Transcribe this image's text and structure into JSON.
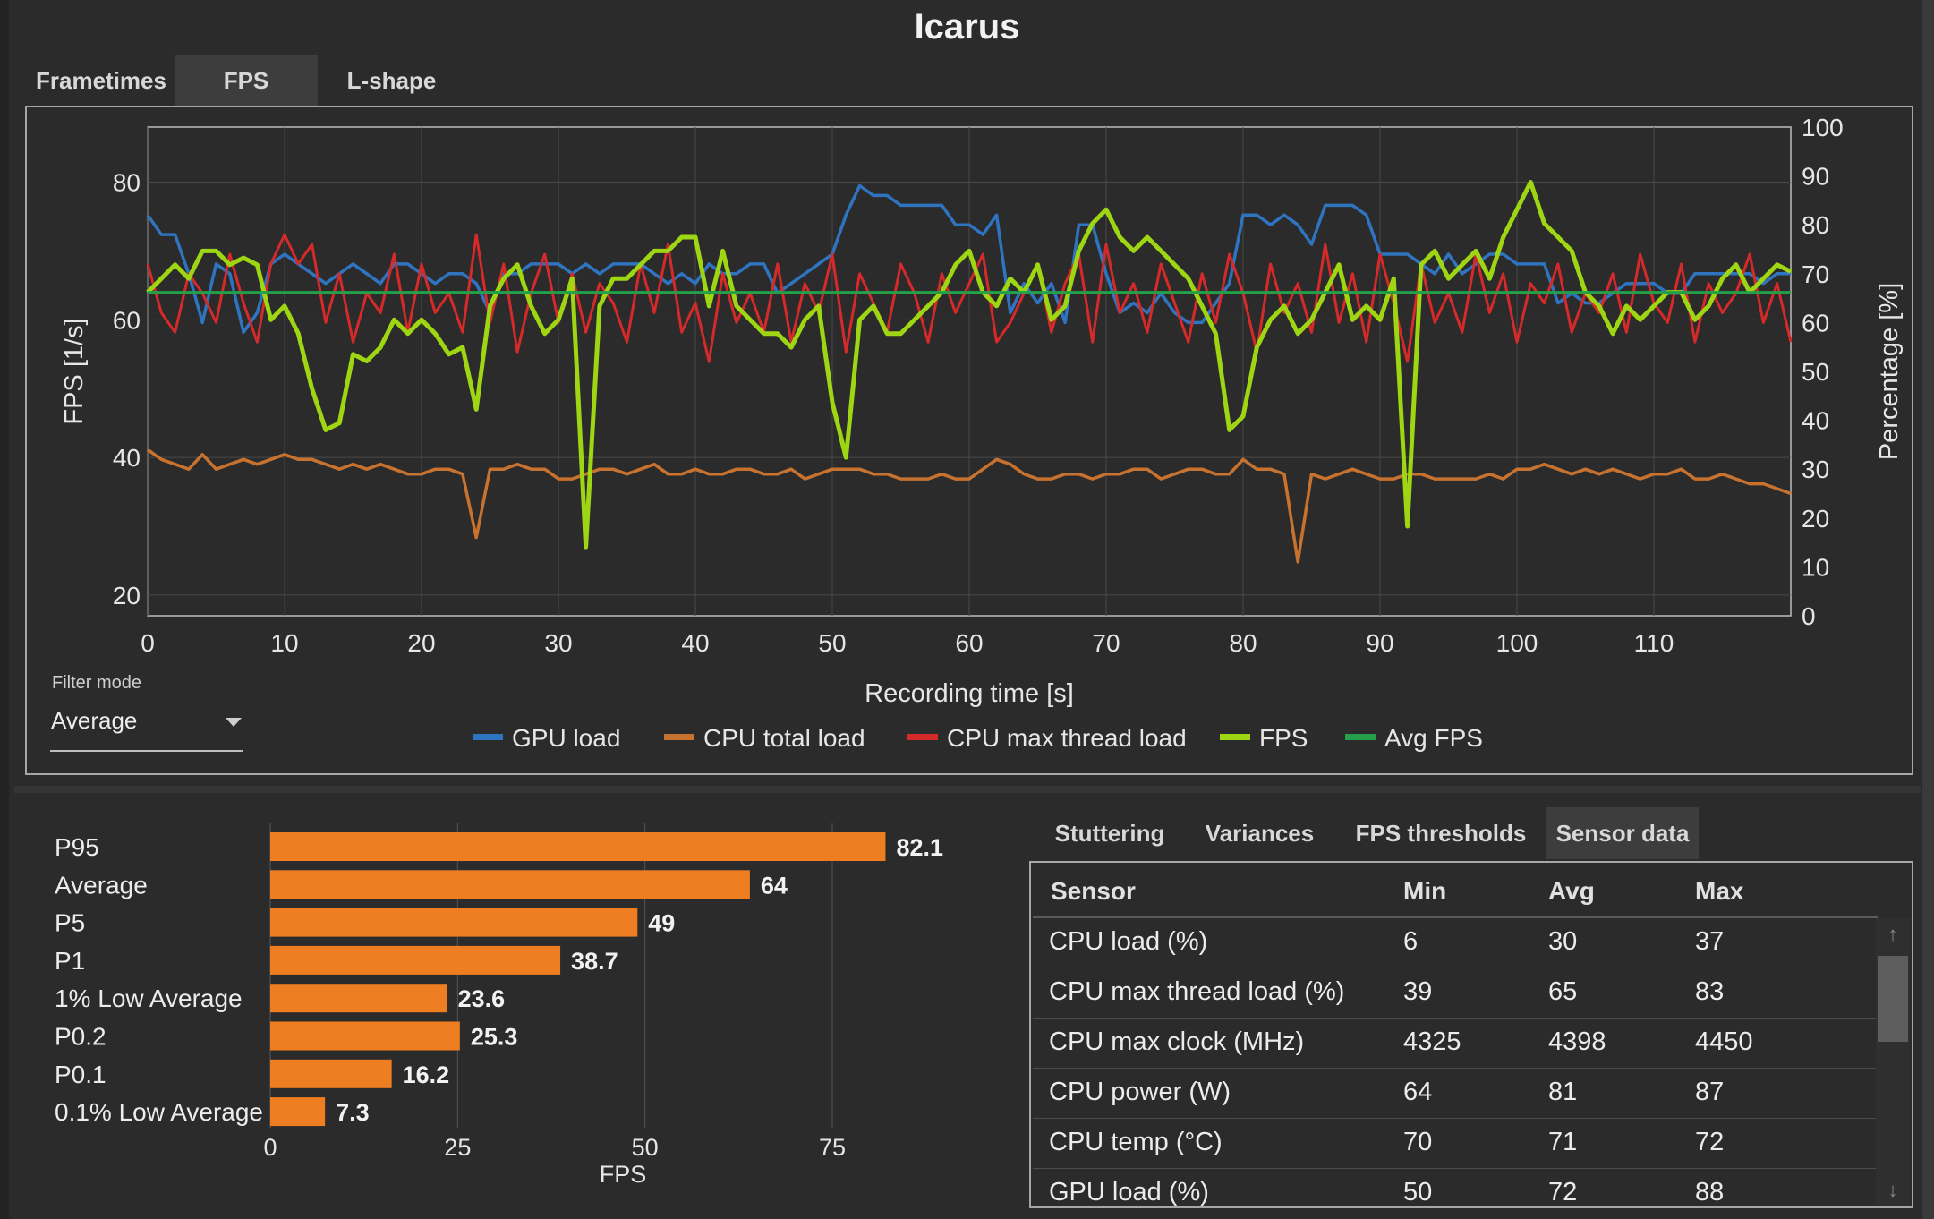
{
  "title": "Icarus",
  "tabs": [
    "Frametimes",
    "FPS",
    "L-shape"
  ],
  "active_tab": "FPS",
  "filter": {
    "label": "Filter mode",
    "value": "Average"
  },
  "colors": {
    "gpu_load": "#2f74c0",
    "cpu_total": "#c8722f",
    "cpu_max_thread": "#d42a2a",
    "fps": "#9ed614",
    "avg_fps": "#23a049",
    "bar": "#ef7d22"
  },
  "chart_data": [
    {
      "type": "line",
      "title": "",
      "xlabel": "Recording time [s]",
      "ylabel": "FPS [1/s]",
      "y2label": "Percentage [%]",
      "xlim": [
        0,
        120
      ],
      "ylim": [
        17,
        88
      ],
      "y2lim": [
        0,
        100
      ],
      "xticks": [
        0,
        10,
        20,
        30,
        40,
        50,
        60,
        70,
        80,
        90,
        100,
        110
      ],
      "yticks": [
        20,
        40,
        60,
        80
      ],
      "y2ticks": [
        0,
        10,
        20,
        30,
        40,
        50,
        60,
        70,
        80,
        90,
        100
      ],
      "grid": true,
      "legend_position": "bottom",
      "series": [
        {
          "name": "GPU load",
          "axis": "right",
          "x": [
            0,
            1,
            2,
            3,
            4,
            5,
            6,
            7,
            8,
            9,
            10,
            11,
            12,
            13,
            14,
            15,
            16,
            17,
            18,
            19,
            20,
            21,
            22,
            23,
            24,
            25,
            26,
            27,
            28,
            29,
            30,
            31,
            32,
            33,
            34,
            35,
            36,
            37,
            38,
            39,
            40,
            41,
            42,
            43,
            44,
            45,
            46,
            47,
            48,
            49,
            50,
            51,
            52,
            53,
            54,
            55,
            56,
            57,
            58,
            59,
            60,
            61,
            62,
            63,
            64,
            65,
            66,
            67,
            68,
            69,
            70,
            71,
            72,
            73,
            74,
            75,
            76,
            77,
            78,
            79,
            80,
            81,
            82,
            83,
            84,
            85,
            86,
            87,
            88,
            89,
            90,
            91,
            92,
            93,
            94,
            95,
            96,
            97,
            98,
            99,
            100,
            101,
            102,
            103,
            104,
            105,
            106,
            107,
            108,
            109,
            110,
            111,
            112,
            113,
            114,
            115,
            116,
            117,
            118,
            119,
            120
          ],
          "y": [
            82,
            78,
            78,
            70,
            60,
            72,
            70,
            58,
            62,
            72,
            74,
            72,
            70,
            68,
            70,
            72,
            70,
            68,
            72,
            72,
            70,
            68,
            70,
            70,
            68,
            62,
            70,
            70,
            72,
            72,
            72,
            70,
            72,
            70,
            72,
            72,
            72,
            70,
            68,
            70,
            68,
            72,
            70,
            70,
            72,
            72,
            66,
            68,
            70,
            72,
            74,
            82,
            88,
            86,
            86,
            84,
            84,
            84,
            84,
            80,
            80,
            78,
            82,
            62,
            68,
            64,
            68,
            60,
            80,
            80,
            70,
            62,
            64,
            62,
            66,
            62,
            60,
            60,
            64,
            68,
            82,
            82,
            80,
            82,
            80,
            76,
            84,
            84,
            84,
            82,
            74,
            74,
            74,
            72,
            70,
            74,
            70,
            72,
            74,
            74,
            72,
            72,
            72,
            64,
            66,
            64,
            64,
            66,
            68,
            68,
            68,
            66,
            66,
            70,
            70,
            70,
            70,
            70,
            68,
            70,
            70
          ]
        },
        {
          "name": "CPU total load",
          "axis": "right",
          "x": [
            0,
            1,
            2,
            3,
            4,
            5,
            6,
            7,
            8,
            9,
            10,
            11,
            12,
            13,
            14,
            15,
            16,
            17,
            18,
            19,
            20,
            21,
            22,
            23,
            24,
            25,
            26,
            27,
            28,
            29,
            30,
            31,
            32,
            33,
            34,
            35,
            36,
            37,
            38,
            39,
            40,
            41,
            42,
            43,
            44,
            45,
            46,
            47,
            48,
            49,
            50,
            51,
            52,
            53,
            54,
            55,
            56,
            57,
            58,
            59,
            60,
            61,
            62,
            63,
            64,
            65,
            66,
            67,
            68,
            69,
            70,
            71,
            72,
            73,
            74,
            75,
            76,
            77,
            78,
            79,
            80,
            81,
            82,
            83,
            84,
            85,
            86,
            87,
            88,
            89,
            90,
            91,
            92,
            93,
            94,
            95,
            96,
            97,
            98,
            99,
            100,
            101,
            102,
            103,
            104,
            105,
            106,
            107,
            108,
            109,
            110,
            111,
            112,
            113,
            114,
            115,
            116,
            117,
            118,
            119,
            120
          ],
          "y": [
            34,
            32,
            31,
            30,
            33,
            30,
            31,
            32,
            31,
            32,
            33,
            32,
            32,
            31,
            30,
            31,
            30,
            31,
            30,
            29,
            29,
            30,
            30,
            29,
            16,
            30,
            30,
            31,
            30,
            30,
            28,
            28,
            29,
            30,
            30,
            29,
            30,
            31,
            29,
            29,
            30,
            29,
            29,
            30,
            30,
            29,
            29,
            30,
            28,
            29,
            30,
            30,
            30,
            29,
            29,
            28,
            28,
            28,
            29,
            28,
            28,
            30,
            32,
            31,
            29,
            28,
            28,
            29,
            29,
            28,
            29,
            29,
            30,
            30,
            28,
            29,
            30,
            30,
            29,
            29,
            32,
            30,
            30,
            29,
            11,
            29,
            28,
            29,
            30,
            29,
            28,
            28,
            29,
            29,
            28,
            28,
            28,
            28,
            29,
            28,
            30,
            30,
            31,
            30,
            29,
            30,
            29,
            30,
            29,
            28,
            29,
            29,
            30,
            28,
            28,
            29,
            28,
            27,
            27,
            26,
            25
          ]
        },
        {
          "name": "CPU max thread load",
          "axis": "right",
          "x": [
            0,
            1,
            2,
            3,
            4,
            5,
            6,
            7,
            8,
            9,
            10,
            11,
            12,
            13,
            14,
            15,
            16,
            17,
            18,
            19,
            20,
            21,
            22,
            23,
            24,
            25,
            26,
            27,
            28,
            29,
            30,
            31,
            32,
            33,
            34,
            35,
            36,
            37,
            38,
            39,
            40,
            41,
            42,
            43,
            44,
            45,
            46,
            47,
            48,
            49,
            50,
            51,
            52,
            53,
            54,
            55,
            56,
            57,
            58,
            59,
            60,
            61,
            62,
            63,
            64,
            65,
            66,
            67,
            68,
            69,
            70,
            71,
            72,
            73,
            74,
            75,
            76,
            77,
            78,
            79,
            80,
            81,
            82,
            83,
            84,
            85,
            86,
            87,
            88,
            89,
            90,
            91,
            92,
            93,
            94,
            95,
            96,
            97,
            98,
            99,
            100,
            101,
            102,
            103,
            104,
            105,
            106,
            107,
            108,
            109,
            110,
            111,
            112,
            113,
            114,
            115,
            116,
            117,
            118,
            119,
            120
          ],
          "y": [
            72,
            62,
            58,
            70,
            66,
            60,
            74,
            64,
            56,
            72,
            78,
            72,
            76,
            60,
            70,
            56,
            66,
            62,
            74,
            58,
            72,
            62,
            66,
            58,
            78,
            60,
            72,
            54,
            66,
            74,
            60,
            70,
            58,
            68,
            64,
            56,
            72,
            62,
            76,
            58,
            64,
            52,
            70,
            60,
            66,
            58,
            72,
            56,
            68,
            62,
            74,
            54,
            70,
            64,
            58,
            72,
            66,
            56,
            70,
            62,
            68,
            74,
            56,
            60,
            66,
            72,
            58,
            68,
            74,
            56,
            76,
            62,
            68,
            58,
            72,
            64,
            56,
            70,
            60,
            74,
            66,
            54,
            72,
            62,
            68,
            58,
            76,
            60,
            70,
            56,
            74,
            64,
            52,
            72,
            60,
            66,
            58,
            74,
            62,
            70,
            56,
            68,
            64,
            72,
            58,
            66,
            62,
            70,
            58,
            74,
            64,
            60,
            72,
            56,
            68,
            62,
            66,
            74,
            60,
            68,
            56
          ]
        },
        {
          "name": "FPS",
          "axis": "left",
          "x": [
            0,
            1,
            2,
            3,
            4,
            5,
            6,
            7,
            8,
            9,
            10,
            11,
            12,
            13,
            14,
            15,
            16,
            17,
            18,
            19,
            20,
            21,
            22,
            23,
            24,
            25,
            26,
            27,
            28,
            29,
            30,
            31,
            32,
            33,
            34,
            35,
            36,
            37,
            38,
            39,
            40,
            41,
            42,
            43,
            44,
            45,
            46,
            47,
            48,
            49,
            50,
            51,
            52,
            53,
            54,
            55,
            56,
            57,
            58,
            59,
            60,
            61,
            62,
            63,
            64,
            65,
            66,
            67,
            68,
            69,
            70,
            71,
            72,
            73,
            74,
            75,
            76,
            77,
            78,
            79,
            80,
            81,
            82,
            83,
            84,
            85,
            86,
            87,
            88,
            89,
            90,
            91,
            92,
            93,
            94,
            95,
            96,
            97,
            98,
            99,
            100,
            101,
            102,
            103,
            104,
            105,
            106,
            107,
            108,
            109,
            110,
            111,
            112,
            113,
            114,
            115,
            116,
            117,
            118,
            119,
            120
          ],
          "y": [
            64,
            66,
            68,
            66,
            70,
            70,
            68,
            69,
            68,
            60,
            62,
            58,
            50,
            44,
            45,
            55,
            54,
            56,
            60,
            58,
            60,
            58,
            55,
            56,
            47,
            62,
            66,
            68,
            62,
            58,
            60,
            66,
            27,
            62,
            66,
            66,
            68,
            70,
            70,
            72,
            72,
            62,
            70,
            62,
            60,
            58,
            58,
            56,
            60,
            62,
            48,
            40,
            60,
            62,
            58,
            58,
            60,
            62,
            64,
            68,
            70,
            64,
            62,
            66,
            64,
            68,
            60,
            62,
            70,
            74,
            76,
            72,
            70,
            72,
            70,
            68,
            66,
            62,
            58,
            44,
            46,
            56,
            60,
            62,
            58,
            60,
            64,
            68,
            60,
            62,
            60,
            66,
            30,
            68,
            70,
            66,
            68,
            70,
            66,
            72,
            76,
            80,
            74,
            72,
            70,
            64,
            62,
            58,
            62,
            60,
            62,
            64,
            64,
            60,
            62,
            66,
            68,
            64,
            66,
            68,
            67
          ]
        },
        {
          "name": "Avg FPS",
          "axis": "left",
          "x": [
            0,
            120
          ],
          "y": [
            64,
            64
          ]
        }
      ]
    },
    {
      "type": "bar",
      "orientation": "horizontal",
      "title": "",
      "xlabel": "FPS",
      "ylabel": "",
      "categories": [
        "P95",
        "Average",
        "P5",
        "P1",
        "1% Low Average",
        "P0.2",
        "P0.1",
        "0.1% Low Average"
      ],
      "values": [
        82.1,
        64,
        49,
        38.7,
        23.6,
        25.3,
        16.2,
        7.3
      ],
      "value_labels": [
        "82.1",
        "64",
        "49",
        "38.7",
        "23.6",
        "25.3",
        "16.2",
        "7.3"
      ],
      "xlim": [
        0,
        90
      ],
      "xticks": [
        0,
        25,
        50,
        75
      ],
      "grid": true
    }
  ],
  "sensor_tabs": [
    "Stuttering",
    "Variances",
    "FPS thresholds",
    "Sensor data"
  ],
  "active_sensor_tab": "Sensor data",
  "sensor_table": {
    "columns": [
      "Sensor",
      "Min",
      "Avg",
      "Max"
    ],
    "rows": [
      [
        "CPU load (%)",
        "6",
        "30",
        "37"
      ],
      [
        "CPU max thread load (%)",
        "39",
        "65",
        "83"
      ],
      [
        "CPU max clock (MHz)",
        "4325",
        "4398",
        "4450"
      ],
      [
        "CPU power (W)",
        "64",
        "81",
        "87"
      ],
      [
        "CPU temp (°C)",
        "70",
        "71",
        "72"
      ],
      [
        "GPU load (%)",
        "50",
        "72",
        "88"
      ]
    ]
  },
  "scroll_icons": {
    "up": "↑",
    "down": "↓"
  }
}
